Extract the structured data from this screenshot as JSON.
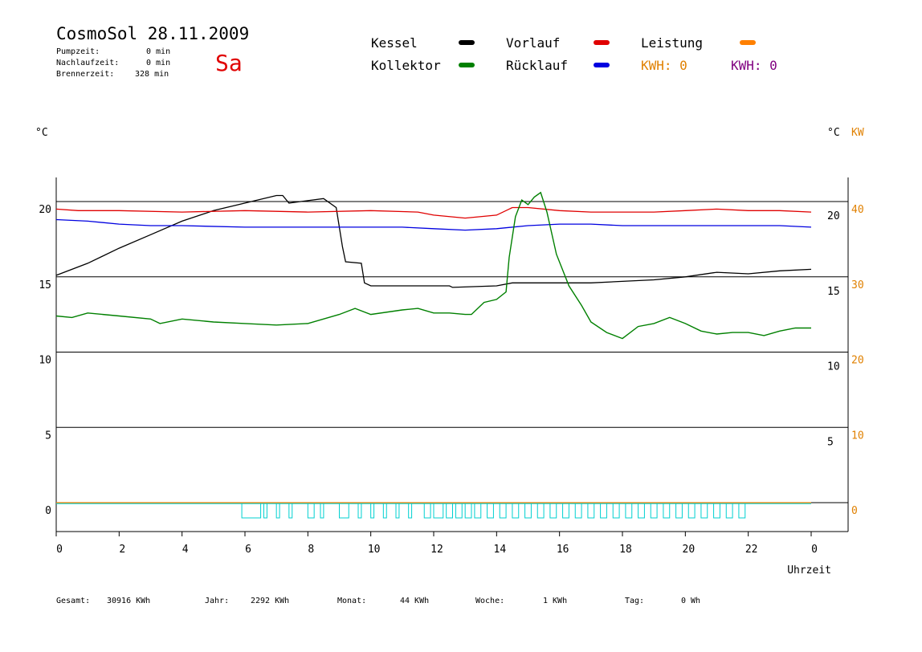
{
  "header": {
    "title": "CosmoSol 28.11.2009",
    "day": "Sa",
    "stats": [
      {
        "label": "Pumpzeit:",
        "value": "0 min"
      },
      {
        "label": "Nachlaufzeit:",
        "value": "0 min"
      },
      {
        "label": "Brennerzeit:",
        "value": "328 min"
      }
    ]
  },
  "legend": {
    "items": [
      {
        "label": "Kessel",
        "color": "#000000"
      },
      {
        "label": "Vorlauf",
        "color": "#e00000"
      },
      {
        "label": "Leistung",
        "color": "#ff8000"
      },
      {
        "label": "Kollektor",
        "color": "#008000"
      },
      {
        "label": "Rücklauf",
        "color": "#0000e0"
      }
    ],
    "kwh_orange": "KWH: 0",
    "kwh_purple": "KWH: 0",
    "kwh_orange_color": "#e08000",
    "kwh_purple_color": "#800080"
  },
  "units": {
    "left": "°C",
    "right_c": "°C",
    "right_kw": "KW"
  },
  "footer": [
    {
      "label": "Gesamt:",
      "value": "30916 KWh"
    },
    {
      "label": "Jahr:",
      "value": "2292 KWh"
    },
    {
      "label": "Monat:",
      "value": "44 KWh"
    },
    {
      "label": "Woche:",
      "value": "1 KWh"
    },
    {
      "label": "Tag:",
      "value": "0 Wh"
    }
  ],
  "chart_data": {
    "type": "line",
    "xlabel": "Uhrzeit",
    "x_tick_labels": [
      "0",
      "2",
      "4",
      "6",
      "8",
      "10",
      "12",
      "14",
      "16",
      "18",
      "20",
      "22",
      "0"
    ],
    "xlim": [
      0,
      24
    ],
    "y_left_ticks": [
      "20",
      "15",
      "10",
      "5",
      "0"
    ],
    "y_left_lim": [
      -1.5,
      22
    ],
    "y_right_c_ticks": [
      "20",
      "15",
      "10",
      "5"
    ],
    "y_right_kw_ticks": [
      "40",
      "30",
      "20",
      "10",
      "0"
    ],
    "grid": "horizontal",
    "series": [
      {
        "name": "Kessel",
        "color": "#000000",
        "points": [
          [
            0,
            15.1
          ],
          [
            1,
            15.9
          ],
          [
            2,
            16.9
          ],
          [
            3,
            17.8
          ],
          [
            4,
            18.7
          ],
          [
            5,
            19.4
          ],
          [
            6,
            19.9
          ],
          [
            7,
            20.4
          ],
          [
            7.2,
            20.4
          ],
          [
            7.4,
            19.9
          ],
          [
            8.5,
            20.2
          ],
          [
            8.9,
            19.6
          ],
          [
            9.1,
            17.0
          ],
          [
            9.2,
            16.0
          ],
          [
            9.7,
            15.9
          ],
          [
            9.8,
            14.6
          ],
          [
            10,
            14.4
          ],
          [
            12.5,
            14.4
          ],
          [
            12.6,
            14.3
          ],
          [
            14,
            14.4
          ],
          [
            14.5,
            14.6
          ],
          [
            16,
            14.6
          ],
          [
            17,
            14.6
          ],
          [
            18,
            14.7
          ],
          [
            19,
            14.8
          ],
          [
            20,
            15.0
          ],
          [
            21,
            15.3
          ],
          [
            22,
            15.2
          ],
          [
            23,
            15.4
          ],
          [
            24,
            15.5
          ]
        ]
      },
      {
        "name": "Vorlauf",
        "color": "#e00000",
        "points": [
          [
            0,
            19.5
          ],
          [
            0.7,
            19.4
          ],
          [
            2,
            19.4
          ],
          [
            4,
            19.3
          ],
          [
            6,
            19.4
          ],
          [
            8,
            19.3
          ],
          [
            10,
            19.4
          ],
          [
            11.5,
            19.3
          ],
          [
            12,
            19.1
          ],
          [
            13,
            18.9
          ],
          [
            14,
            19.1
          ],
          [
            14.5,
            19.6
          ],
          [
            15,
            19.6
          ],
          [
            16,
            19.4
          ],
          [
            17,
            19.3
          ],
          [
            18,
            19.3
          ],
          [
            19,
            19.3
          ],
          [
            20,
            19.4
          ],
          [
            21,
            19.5
          ],
          [
            22,
            19.4
          ],
          [
            23,
            19.4
          ],
          [
            24,
            19.3
          ]
        ]
      },
      {
        "name": "Rücklauf",
        "color": "#0000e0",
        "points": [
          [
            0,
            18.8
          ],
          [
            1,
            18.7
          ],
          [
            2,
            18.5
          ],
          [
            3,
            18.4
          ],
          [
            4,
            18.4
          ],
          [
            6,
            18.3
          ],
          [
            8,
            18.3
          ],
          [
            9,
            18.3
          ],
          [
            10,
            18.3
          ],
          [
            11,
            18.3
          ],
          [
            12,
            18.2
          ],
          [
            13,
            18.1
          ],
          [
            14,
            18.2
          ],
          [
            15,
            18.4
          ],
          [
            16,
            18.5
          ],
          [
            17,
            18.5
          ],
          [
            18,
            18.4
          ],
          [
            19,
            18.4
          ],
          [
            20,
            18.4
          ],
          [
            21,
            18.4
          ],
          [
            22,
            18.4
          ],
          [
            23,
            18.4
          ],
          [
            24,
            18.3
          ]
        ]
      },
      {
        "name": "Kollektor",
        "color": "#008000",
        "points": [
          [
            0,
            12.4
          ],
          [
            0.5,
            12.3
          ],
          [
            1,
            12.6
          ],
          [
            2,
            12.4
          ],
          [
            3,
            12.2
          ],
          [
            3.3,
            11.9
          ],
          [
            4,
            12.2
          ],
          [
            5,
            12.0
          ],
          [
            6,
            11.9
          ],
          [
            7,
            11.8
          ],
          [
            8,
            11.9
          ],
          [
            9,
            12.5
          ],
          [
            9.5,
            12.9
          ],
          [
            10,
            12.5
          ],
          [
            11,
            12.8
          ],
          [
            11.5,
            12.9
          ],
          [
            12,
            12.6
          ],
          [
            12.5,
            12.6
          ],
          [
            13,
            12.5
          ],
          [
            13.2,
            12.5
          ],
          [
            13.6,
            13.3
          ],
          [
            14,
            13.5
          ],
          [
            14.3,
            14.0
          ],
          [
            14.4,
            16.3
          ],
          [
            14.6,
            19.0
          ],
          [
            14.8,
            20.1
          ],
          [
            15,
            19.8
          ],
          [
            15.2,
            20.3
          ],
          [
            15.4,
            20.6
          ],
          [
            15.6,
            19.3
          ],
          [
            15.9,
            16.5
          ],
          [
            16.3,
            14.4
          ],
          [
            16.7,
            13.1
          ],
          [
            17,
            12.0
          ],
          [
            17.5,
            11.3
          ],
          [
            18,
            10.9
          ],
          [
            18.5,
            11.7
          ],
          [
            19,
            11.9
          ],
          [
            19.5,
            12.3
          ],
          [
            20,
            11.9
          ],
          [
            20.5,
            11.4
          ],
          [
            21,
            11.2
          ],
          [
            21.5,
            11.3
          ],
          [
            22,
            11.3
          ],
          [
            22.5,
            11.1
          ],
          [
            23,
            11.4
          ],
          [
            23.5,
            11.6
          ],
          [
            24,
            11.6
          ]
        ]
      },
      {
        "name": "Leistung",
        "color": "#ff8000",
        "points": [
          [
            0,
            0
          ],
          [
            24,
            0
          ]
        ]
      }
    ],
    "pump_cycles_color": "#00d0d0",
    "pump_cycle_hours": [
      [
        5.9,
        6.5
      ],
      [
        6.6,
        6.7
      ],
      [
        7.0,
        7.1
      ],
      [
        7.4,
        7.5
      ],
      [
        8.0,
        8.2
      ],
      [
        8.4,
        8.5
      ],
      [
        9.0,
        9.3
      ],
      [
        9.6,
        9.7
      ],
      [
        10.0,
        10.1
      ],
      [
        10.4,
        10.5
      ],
      [
        10.8,
        10.9
      ],
      [
        11.2,
        11.3
      ],
      [
        11.7,
        11.9
      ],
      [
        12.0,
        12.3
      ],
      [
        12.4,
        12.6
      ],
      [
        12.7,
        12.9
      ],
      [
        13.0,
        13.2
      ],
      [
        13.3,
        13.5
      ],
      [
        13.7,
        13.9
      ],
      [
        14.1,
        14.3
      ],
      [
        14.5,
        14.7
      ],
      [
        14.9,
        15.1
      ],
      [
        15.3,
        15.5
      ],
      [
        15.7,
        15.9
      ],
      [
        16.1,
        16.3
      ],
      [
        16.5,
        16.7
      ],
      [
        16.9,
        17.1
      ],
      [
        17.3,
        17.5
      ],
      [
        17.7,
        17.9
      ],
      [
        18.1,
        18.3
      ],
      [
        18.5,
        18.7
      ],
      [
        18.9,
        19.1
      ],
      [
        19.3,
        19.5
      ],
      [
        19.7,
        19.9
      ],
      [
        20.1,
        20.3
      ],
      [
        20.5,
        20.7
      ],
      [
        20.9,
        21.1
      ],
      [
        21.3,
        21.5
      ],
      [
        21.7,
        21.9
      ]
    ]
  }
}
